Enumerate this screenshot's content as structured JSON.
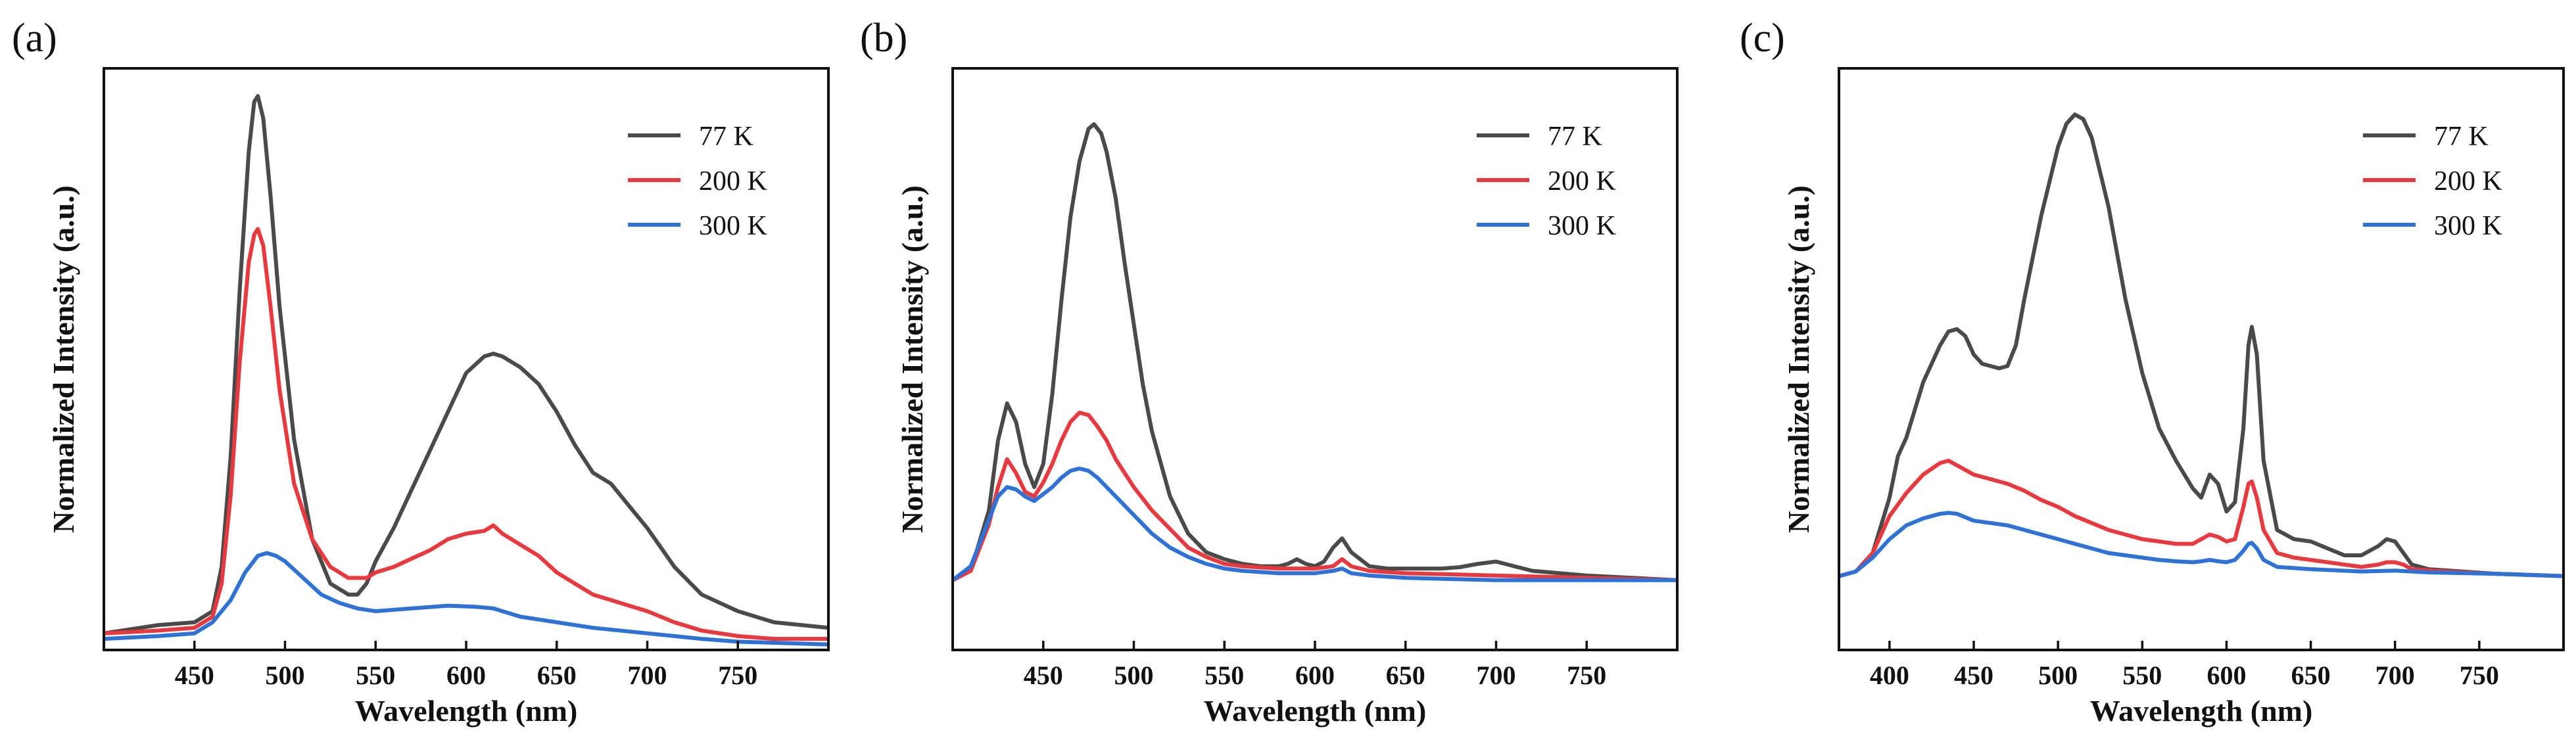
{
  "chart_data": [
    {
      "type": "line",
      "panel_label": "(a)",
      "xlabel": "Wavelength (nm)",
      "ylabel": "Normalized Intensity (a.u.)",
      "xlim": [
        400,
        800
      ],
      "ylim": [
        0,
        1.05
      ],
      "xticks": [
        450,
        500,
        550,
        600,
        650,
        700,
        750
      ],
      "yticks_shown": false,
      "legend_position": "top-right",
      "series": [
        {
          "name": "77 K",
          "color": "#4a4a4a",
          "x": [
            400,
            430,
            450,
            460,
            465,
            470,
            475,
            480,
            483,
            485,
            488,
            492,
            497,
            505,
            515,
            525,
            535,
            540,
            545,
            550,
            560,
            570,
            580,
            590,
            600,
            610,
            615,
            620,
            630,
            640,
            650,
            660,
            670,
            680,
            690,
            700,
            715,
            730,
            750,
            770,
            800
          ],
          "y": [
            0.03,
            0.045,
            0.05,
            0.07,
            0.15,
            0.35,
            0.65,
            0.9,
            0.99,
            1.0,
            0.96,
            0.82,
            0.62,
            0.38,
            0.2,
            0.12,
            0.1,
            0.1,
            0.12,
            0.16,
            0.22,
            0.29,
            0.36,
            0.43,
            0.5,
            0.53,
            0.535,
            0.53,
            0.51,
            0.48,
            0.43,
            0.37,
            0.32,
            0.3,
            0.26,
            0.22,
            0.15,
            0.1,
            0.07,
            0.05,
            0.04
          ]
        },
        {
          "name": "200 K",
          "color": "#e8393f",
          "x": [
            400,
            430,
            450,
            460,
            465,
            470,
            475,
            480,
            483,
            485,
            488,
            492,
            497,
            505,
            515,
            525,
            535,
            545,
            550,
            560,
            570,
            580,
            590,
            600,
            610,
            615,
            620,
            630,
            640,
            650,
            660,
            670,
            680,
            690,
            700,
            715,
            730,
            750,
            770,
            800
          ],
          "y": [
            0.03,
            0.035,
            0.04,
            0.06,
            0.12,
            0.28,
            0.52,
            0.7,
            0.75,
            0.76,
            0.73,
            0.62,
            0.47,
            0.3,
            0.2,
            0.15,
            0.13,
            0.13,
            0.14,
            0.15,
            0.165,
            0.18,
            0.2,
            0.21,
            0.215,
            0.225,
            0.21,
            0.19,
            0.17,
            0.14,
            0.12,
            0.1,
            0.09,
            0.08,
            0.07,
            0.05,
            0.035,
            0.025,
            0.02,
            0.02
          ]
        },
        {
          "name": "300 K",
          "color": "#2f72d6",
          "x": [
            400,
            430,
            450,
            460,
            470,
            478,
            485,
            490,
            495,
            500,
            510,
            520,
            530,
            540,
            550,
            570,
            590,
            605,
            615,
            620,
            630,
            650,
            670,
            700,
            730,
            750,
            800
          ],
          "y": [
            0.02,
            0.025,
            0.03,
            0.05,
            0.09,
            0.14,
            0.17,
            0.175,
            0.17,
            0.16,
            0.13,
            0.1,
            0.085,
            0.075,
            0.07,
            0.075,
            0.08,
            0.078,
            0.075,
            0.07,
            0.06,
            0.05,
            0.04,
            0.03,
            0.02,
            0.015,
            0.01
          ]
        }
      ]
    },
    {
      "type": "line",
      "panel_label": "(b)",
      "xlabel": "Wavelength (nm)",
      "ylabel": "Normalized Intensity (a.u.)",
      "xlim": [
        400,
        800
      ],
      "ylim": [
        -0.15,
        1.1
      ],
      "xticks": [
        450,
        500,
        550,
        600,
        650,
        700,
        750
      ],
      "yticks_shown": false,
      "legend_position": "top-right",
      "series": [
        {
          "name": "77 K",
          "color": "#4a4a4a",
          "x": [
            400,
            410,
            420,
            425,
            430,
            435,
            440,
            445,
            450,
            455,
            460,
            465,
            470,
            475,
            478,
            482,
            485,
            490,
            495,
            500,
            505,
            510,
            520,
            530,
            540,
            550,
            560,
            570,
            580,
            585,
            590,
            595,
            600,
            605,
            610,
            615,
            620,
            630,
            640,
            650,
            660,
            670,
            680,
            690,
            700,
            710,
            720,
            750,
            800
          ],
          "y": [
            0.0,
            0.02,
            0.15,
            0.3,
            0.38,
            0.34,
            0.25,
            0.2,
            0.25,
            0.4,
            0.6,
            0.78,
            0.9,
            0.97,
            0.98,
            0.96,
            0.92,
            0.82,
            0.68,
            0.55,
            0.42,
            0.32,
            0.18,
            0.1,
            0.06,
            0.045,
            0.035,
            0.03,
            0.03,
            0.035,
            0.045,
            0.035,
            0.03,
            0.04,
            0.07,
            0.09,
            0.06,
            0.03,
            0.025,
            0.025,
            0.025,
            0.025,
            0.028,
            0.035,
            0.04,
            0.03,
            0.02,
            0.01,
            0.0
          ]
        },
        {
          "name": "200 K",
          "color": "#e8393f",
          "x": [
            400,
            410,
            420,
            425,
            430,
            435,
            440,
            445,
            450,
            455,
            460,
            465,
            470,
            475,
            480,
            485,
            490,
            500,
            510,
            520,
            530,
            540,
            550,
            560,
            580,
            600,
            610,
            615,
            620,
            630,
            650,
            700,
            750,
            800
          ],
          "y": [
            0.0,
            0.02,
            0.12,
            0.2,
            0.26,
            0.23,
            0.19,
            0.18,
            0.21,
            0.25,
            0.3,
            0.34,
            0.36,
            0.355,
            0.33,
            0.3,
            0.26,
            0.2,
            0.15,
            0.11,
            0.07,
            0.05,
            0.035,
            0.03,
            0.025,
            0.025,
            0.03,
            0.045,
            0.03,
            0.02,
            0.015,
            0.01,
            0.005,
            0.0
          ]
        },
        {
          "name": "300 K",
          "color": "#2f72d6",
          "x": [
            400,
            410,
            420,
            425,
            430,
            435,
            440,
            445,
            450,
            455,
            460,
            465,
            470,
            475,
            480,
            485,
            490,
            500,
            510,
            520,
            530,
            540,
            550,
            560,
            580,
            600,
            610,
            615,
            620,
            630,
            650,
            700,
            750,
            800
          ],
          "y": [
            0.0,
            0.03,
            0.13,
            0.18,
            0.2,
            0.195,
            0.18,
            0.17,
            0.185,
            0.2,
            0.22,
            0.235,
            0.24,
            0.235,
            0.22,
            0.2,
            0.18,
            0.14,
            0.1,
            0.07,
            0.05,
            0.035,
            0.025,
            0.02,
            0.015,
            0.015,
            0.02,
            0.025,
            0.015,
            0.01,
            0.005,
            0.0,
            0.0,
            0.0
          ]
        }
      ]
    },
    {
      "type": "line",
      "panel_label": "(c)",
      "xlabel": "Wavelength (nm)",
      "ylabel": "Normalized Intensity (a.u.)",
      "xlim": [
        370,
        800
      ],
      "ylim": [
        -0.16,
        1.1
      ],
      "xticks": [
        400,
        450,
        500,
        550,
        600,
        650,
        700,
        750
      ],
      "yticks_shown": false,
      "legend_position": "top-right",
      "series": [
        {
          "name": "77 K",
          "color": "#4a4a4a",
          "x": [
            370,
            380,
            390,
            400,
            405,
            410,
            415,
            420,
            430,
            435,
            440,
            445,
            450,
            455,
            460,
            465,
            470,
            475,
            480,
            490,
            500,
            505,
            510,
            515,
            520,
            530,
            540,
            550,
            560,
            570,
            580,
            585,
            590,
            595,
            600,
            605,
            610,
            613,
            615,
            618,
            622,
            630,
            640,
            650,
            660,
            670,
            680,
            690,
            695,
            700,
            705,
            710,
            720,
            740,
            760,
            800
          ],
          "y": [
            0.0,
            0.01,
            0.05,
            0.17,
            0.26,
            0.3,
            0.36,
            0.42,
            0.5,
            0.53,
            0.535,
            0.52,
            0.48,
            0.46,
            0.455,
            0.45,
            0.455,
            0.5,
            0.6,
            0.78,
            0.93,
            0.98,
            1.0,
            0.99,
            0.95,
            0.8,
            0.6,
            0.44,
            0.32,
            0.25,
            0.19,
            0.17,
            0.22,
            0.2,
            0.14,
            0.16,
            0.32,
            0.5,
            0.54,
            0.48,
            0.25,
            0.1,
            0.08,
            0.075,
            0.06,
            0.045,
            0.045,
            0.065,
            0.08,
            0.075,
            0.05,
            0.025,
            0.015,
            0.01,
            0.005,
            0.0
          ]
        },
        {
          "name": "200 K",
          "color": "#e8393f",
          "x": [
            370,
            380,
            390,
            400,
            410,
            420,
            430,
            435,
            440,
            450,
            460,
            470,
            480,
            490,
            500,
            510,
            520,
            530,
            540,
            550,
            560,
            570,
            580,
            585,
            590,
            595,
            600,
            605,
            610,
            613,
            615,
            618,
            622,
            630,
            640,
            650,
            660,
            670,
            680,
            690,
            695,
            700,
            705,
            710,
            730,
            760,
            800
          ],
          "y": [
            0.0,
            0.01,
            0.05,
            0.13,
            0.18,
            0.22,
            0.245,
            0.25,
            0.24,
            0.22,
            0.21,
            0.2,
            0.185,
            0.165,
            0.15,
            0.13,
            0.115,
            0.1,
            0.09,
            0.08,
            0.075,
            0.07,
            0.07,
            0.08,
            0.09,
            0.085,
            0.075,
            0.08,
            0.15,
            0.2,
            0.205,
            0.17,
            0.1,
            0.05,
            0.04,
            0.035,
            0.03,
            0.025,
            0.02,
            0.025,
            0.03,
            0.03,
            0.025,
            0.015,
            0.01,
            0.005,
            0.0
          ]
        },
        {
          "name": "300 K",
          "color": "#2f72d6",
          "x": [
            370,
            380,
            390,
            400,
            410,
            420,
            430,
            435,
            440,
            450,
            460,
            470,
            480,
            490,
            500,
            510,
            520,
            530,
            540,
            550,
            560,
            570,
            580,
            585,
            590,
            595,
            600,
            605,
            610,
            613,
            615,
            618,
            622,
            630,
            650,
            680,
            700,
            720,
            760,
            800
          ],
          "y": [
            0.0,
            0.01,
            0.04,
            0.08,
            0.11,
            0.125,
            0.135,
            0.137,
            0.135,
            0.12,
            0.115,
            0.11,
            0.1,
            0.09,
            0.08,
            0.07,
            0.06,
            0.05,
            0.045,
            0.04,
            0.035,
            0.032,
            0.03,
            0.032,
            0.035,
            0.032,
            0.03,
            0.035,
            0.055,
            0.07,
            0.072,
            0.06,
            0.035,
            0.02,
            0.015,
            0.01,
            0.012,
            0.008,
            0.005,
            0.0
          ]
        }
      ]
    }
  ]
}
